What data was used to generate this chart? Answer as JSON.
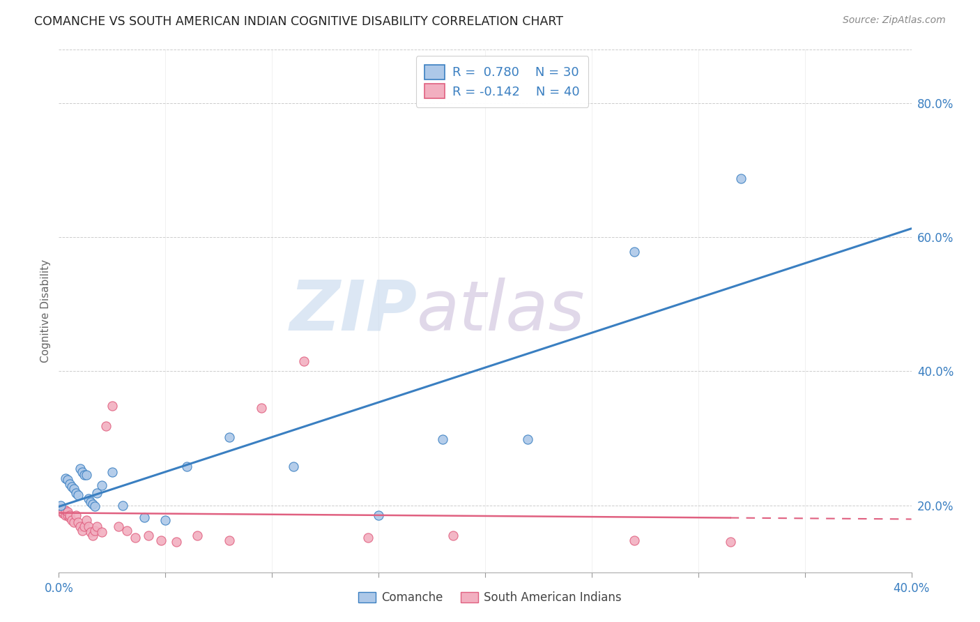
{
  "title": "COMANCHE VS SOUTH AMERICAN INDIAN COGNITIVE DISABILITY CORRELATION CHART",
  "source": "Source: ZipAtlas.com",
  "ylabel": "Cognitive Disability",
  "right_yticks": [
    0.2,
    0.4,
    0.6,
    0.8
  ],
  "right_ytick_labels": [
    "20.0%",
    "40.0%",
    "60.0%",
    "80.0%"
  ],
  "xlim": [
    0.0,
    0.4
  ],
  "ylim": [
    0.1,
    0.88
  ],
  "comanche_R": 0.78,
  "comanche_N": 30,
  "sai_R": -0.142,
  "sai_N": 40,
  "comanche_color": "#adc8e8",
  "sai_color": "#f2afc0",
  "comanche_line_color": "#3a7fc1",
  "sai_line_color": "#e06080",
  "legend_text_color": "#3a7fc1",
  "watermark_zip": "ZIP",
  "watermark_atlas": "atlas",
  "watermark_color_zip": "#c5d8ee",
  "watermark_color_atlas": "#c8b8d8",
  "background_color": "#ffffff",
  "grid_color": "#cccccc",
  "comanche_x": [
    0.001,
    0.003,
    0.004,
    0.005,
    0.006,
    0.007,
    0.008,
    0.009,
    0.01,
    0.011,
    0.012,
    0.013,
    0.014,
    0.015,
    0.016,
    0.017,
    0.018,
    0.02,
    0.025,
    0.03,
    0.04,
    0.05,
    0.06,
    0.08,
    0.11,
    0.15,
    0.18,
    0.22,
    0.27,
    0.32
  ],
  "comanche_y": [
    0.2,
    0.24,
    0.238,
    0.232,
    0.228,
    0.225,
    0.218,
    0.215,
    0.255,
    0.25,
    0.245,
    0.245,
    0.21,
    0.205,
    0.202,
    0.198,
    0.218,
    0.23,
    0.25,
    0.2,
    0.182,
    0.178,
    0.258,
    0.302,
    0.258,
    0.185,
    0.298,
    0.298,
    0.578,
    0.688
  ],
  "sai_x": [
    0.001,
    0.001,
    0.002,
    0.002,
    0.003,
    0.003,
    0.004,
    0.004,
    0.005,
    0.005,
    0.006,
    0.007,
    0.008,
    0.009,
    0.01,
    0.011,
    0.012,
    0.013,
    0.014,
    0.015,
    0.016,
    0.017,
    0.018,
    0.02,
    0.022,
    0.025,
    0.028,
    0.032,
    0.036,
    0.042,
    0.048,
    0.055,
    0.065,
    0.08,
    0.095,
    0.115,
    0.145,
    0.185,
    0.27,
    0.315
  ],
  "sai_y": [
    0.192,
    0.195,
    0.188,
    0.19,
    0.185,
    0.192,
    0.185,
    0.19,
    0.182,
    0.185,
    0.178,
    0.175,
    0.185,
    0.175,
    0.168,
    0.162,
    0.168,
    0.178,
    0.168,
    0.16,
    0.155,
    0.162,
    0.168,
    0.16,
    0.318,
    0.348,
    0.168,
    0.162,
    0.152,
    0.155,
    0.148,
    0.145,
    0.155,
    0.148,
    0.345,
    0.415,
    0.152,
    0.155,
    0.148,
    0.145
  ]
}
